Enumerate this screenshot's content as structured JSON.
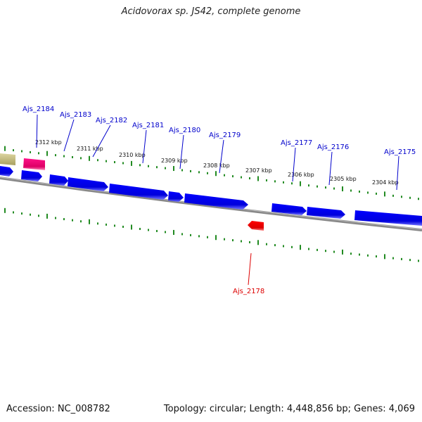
{
  "title": "Acidovorax sp. JS42, complete genome",
  "footer": {
    "accession": "Accession: NC_008782",
    "topology": "Topology: circular; Length: 4,448,856 bp; Genes: 4,069"
  },
  "colors": {
    "forward_gene": "#0000ee",
    "reverse_gene": "#ee0000",
    "pink_feature": "#ee1177",
    "olive_feature": "#c8c080",
    "backbone": "#808080",
    "tick": "#228b22",
    "label_blue": "#0000cc",
    "label_red": "#dd0000"
  },
  "kbp_ticks": [
    "2312 kbp",
    "2311 kbp",
    "2310 kbp",
    "2309 kbp",
    "2308 kbp",
    "2307 kbp",
    "2306 kbp",
    "2305 kbp",
    "2304 kbp"
  ],
  "genes": [
    {
      "id": "Ajs_2184",
      "strand": "+",
      "color": "blue"
    },
    {
      "id": "Ajs_2183",
      "strand": "+",
      "color": "blue"
    },
    {
      "id": "Ajs_2182",
      "strand": "+",
      "color": "blue"
    },
    {
      "id": "Ajs_2181",
      "strand": "+",
      "color": "blue"
    },
    {
      "id": "Ajs_2180",
      "strand": "+",
      "color": "blue"
    },
    {
      "id": "Ajs_2179",
      "strand": "+",
      "color": "blue"
    },
    {
      "id": "Ajs_2178",
      "strand": "-",
      "color": "red"
    },
    {
      "id": "Ajs_2177",
      "strand": "+",
      "color": "blue"
    },
    {
      "id": "Ajs_2176",
      "strand": "+",
      "color": "blue"
    },
    {
      "id": "Ajs_2175",
      "strand": "+",
      "color": "blue"
    }
  ]
}
